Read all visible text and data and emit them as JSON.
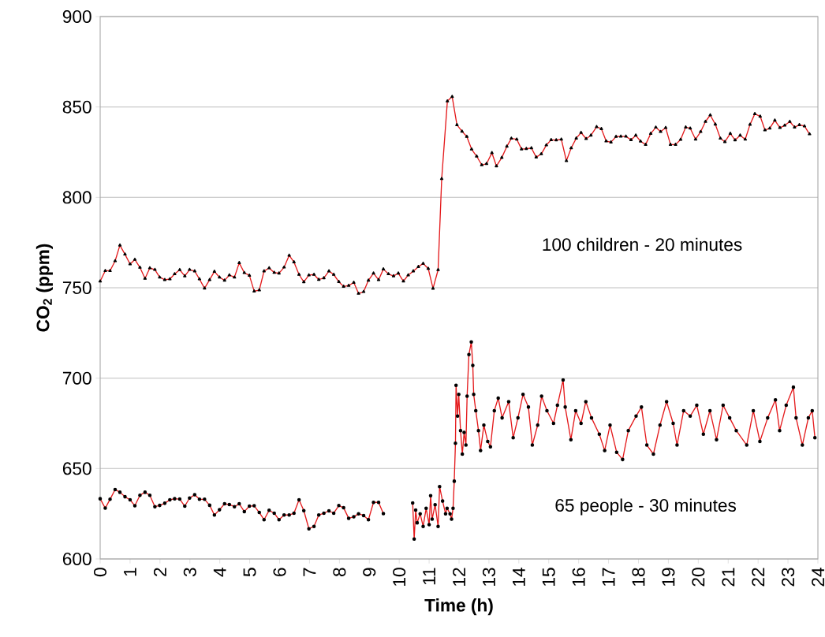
{
  "chart_data": {
    "type": "line",
    "xlabel": "Time (h)",
    "ylabel": "CO$_{2}$ (ppm)",
    "xlim": [
      0,
      24
    ],
    "ylim": [
      600,
      900
    ],
    "xticks": [
      0,
      1,
      2,
      3,
      4,
      5,
      6,
      7,
      8,
      9,
      10,
      11,
      12,
      13,
      14,
      15,
      16,
      17,
      18,
      19,
      20,
      21,
      22,
      23,
      24
    ],
    "yticks": [
      600,
      650,
      700,
      750,
      800,
      850,
      900
    ],
    "grid": "y",
    "line_style": "solid",
    "annotations": [
      "100 children - 20 minutes",
      "65 people - 30 minutes"
    ],
    "series": [
      {
        "color": "#e41a1c",
        "marker": "triangle",
        "x": [
          0,
          0.17,
          0.33,
          0.5,
          0.66,
          0.83,
          1.0,
          1.16,
          1.33,
          1.5,
          1.66,
          1.83,
          1.99,
          2.16,
          2.33,
          2.49,
          2.66,
          2.83,
          2.99,
          3.16,
          3.32,
          3.49,
          3.66,
          3.82,
          3.99,
          4.16,
          4.32,
          4.49,
          4.65,
          4.82,
          4.99,
          5.15,
          5.32,
          5.48,
          5.65,
          5.82,
          5.98,
          6.15,
          6.32,
          6.48,
          6.65,
          6.81,
          6.98,
          7.15,
          7.31,
          7.48,
          7.65,
          7.81,
          7.98,
          8.14,
          8.31,
          8.48,
          8.64,
          8.81,
          8.97,
          9.14,
          9.31,
          9.47,
          9.64,
          9.81,
          9.97,
          10.14,
          10.3,
          10.47,
          10.64,
          10.8,
          10.97,
          11.13,
          11.3,
          11.42,
          11.61,
          11.77,
          11.93,
          12.1,
          12.26,
          12.42,
          12.59,
          12.76,
          12.92,
          13.1,
          13.25,
          13.43,
          13.6,
          13.75,
          13.93,
          14.09,
          14.25,
          14.42,
          14.58,
          14.75,
          14.92,
          15.08,
          15.25,
          15.42,
          15.59,
          15.75,
          15.92,
          16.08,
          16.25,
          16.41,
          16.6,
          16.76,
          16.92,
          17.08,
          17.25,
          17.41,
          17.58,
          17.75,
          17.91,
          18.07,
          18.24,
          18.41,
          18.58,
          18.74,
          18.91,
          19.07,
          19.24,
          19.41,
          19.58,
          19.73,
          19.91,
          20.08,
          20.24,
          20.4,
          20.57,
          20.74,
          20.89,
          21.07,
          21.23,
          21.4,
          21.57,
          21.73,
          21.89,
          22.07,
          22.23,
          22.39,
          22.56,
          22.73,
          22.89,
          23.06,
          23.22,
          23.38,
          23.55,
          23.72
        ],
        "values": [
          753.6,
          759.4,
          759.4,
          764.8,
          773.5,
          768.5,
          763.1,
          765.6,
          761.2,
          755.1,
          760.9,
          760,
          755.8,
          754.4,
          754.8,
          757.6,
          759.9,
          756.5,
          760,
          759.2,
          754.8,
          749.7,
          754.4,
          759,
          755.8,
          754.1,
          757,
          755.8,
          763.8,
          758.3,
          756.8,
          748.1,
          748.7,
          759.2,
          760.9,
          758.4,
          758,
          761.3,
          767.9,
          764.2,
          757.3,
          753.2,
          757,
          757.3,
          754.5,
          755.4,
          759.2,
          757.3,
          753.3,
          750.7,
          751.2,
          752.9,
          746.8,
          747.8,
          754.1,
          758,
          754.4,
          760.3,
          757.6,
          756.5,
          758,
          753.6,
          757,
          759.2,
          761.6,
          763.4,
          760.6,
          749.6,
          759.9,
          810.3,
          853.2,
          855.7,
          840.1,
          836.5,
          833.6,
          826.6,
          822.7,
          817.9,
          818.6,
          824.6,
          817.3,
          822,
          828.2,
          832.6,
          832.1,
          826.7,
          826.9,
          827.3,
          822.2,
          824,
          828.9,
          831.8,
          831.7,
          832.1,
          820.2,
          827.3,
          832.7,
          835.8,
          832.4,
          834.3,
          839,
          837.9,
          831.1,
          830.5,
          833.6,
          833.7,
          833.7,
          831.8,
          834.3,
          831,
          829.2,
          835.3,
          838.7,
          836.3,
          838.5,
          829.2,
          829.2,
          832,
          838.8,
          838.2,
          832.1,
          836.3,
          841.9,
          845.5,
          840.4,
          832.6,
          830.7,
          835.3,
          831.7,
          834.3,
          832.1,
          840.3,
          846.2,
          844.8,
          837.2,
          838.2,
          842.6,
          838.5,
          839.8,
          841.9,
          838.8,
          840.1,
          839.4,
          835
        ]
      },
      {
        "color": "#e41a1c",
        "marker": "circle",
        "x": [
          0,
          0.17,
          0.33,
          0.5,
          0.66,
          0.83,
          1.0,
          1.16,
          1.33,
          1.5,
          1.66,
          1.83,
          1.99,
          2.16,
          2.33,
          2.49,
          2.66,
          2.83,
          2.99,
          3.16,
          3.32,
          3.49,
          3.66,
          3.82,
          3.99,
          4.16,
          4.32,
          4.49,
          4.65,
          4.82,
          4.99,
          5.15,
          5.32,
          5.48,
          5.65,
          5.82,
          5.98,
          6.15,
          6.32,
          6.48,
          6.65,
          6.81,
          6.98,
          7.15,
          7.31,
          7.48,
          7.65,
          7.81,
          7.98,
          8.14,
          8.31,
          8.48,
          8.64,
          8.81,
          8.97,
          9.14,
          9.31,
          9.47,
          10,
          10.45,
          10.5,
          10.55,
          10.6,
          10.7,
          10.8,
          10.9,
          11.0,
          11.05,
          11.1,
          11.2,
          11.3,
          11.35,
          11.45,
          11.55,
          11.6,
          11.7,
          11.75,
          11.8,
          11.84,
          11.88,
          11.9,
          11.95,
          11.99,
          12.05,
          12.11,
          12.17,
          12.23,
          12.27,
          12.33,
          12.41,
          12.46,
          12.49,
          12.56,
          12.65,
          12.72,
          12.83,
          12.96,
          13.05,
          13.18,
          13.31,
          13.44,
          13.66,
          13.81,
          13.97,
          14.14,
          14.32,
          14.45,
          14.63,
          14.76,
          14.94,
          15.16,
          15.29,
          15.48,
          15.55,
          15.74,
          15.9,
          16.08,
          16.24,
          16.43,
          16.69,
          16.87,
          17.05,
          17.27,
          17.47,
          17.66,
          17.92,
          18.1,
          18.28,
          18.5,
          18.72,
          18.94,
          19.16,
          19.29,
          19.51,
          19.73,
          19.95,
          20.17,
          20.39,
          20.61,
          20.83,
          21.05,
          21.27,
          21.62,
          21.84,
          22.06,
          22.32,
          22.58,
          22.72,
          22.94,
          23.18,
          23.27,
          23.48,
          23.68,
          23.81,
          23.9
        ],
        "values": [
          633.3,
          628.1,
          633,
          638.4,
          636.9,
          634.4,
          632.7,
          629.4,
          635.2,
          636.9,
          635.2,
          628.9,
          629.6,
          630.8,
          632.7,
          633.3,
          633.1,
          629.2,
          633.7,
          635.5,
          633,
          633,
          629.7,
          624.3,
          627.2,
          630.5,
          630.1,
          628.9,
          630.5,
          626.2,
          629.2,
          629.4,
          625.7,
          621.7,
          626.9,
          625.3,
          621.7,
          624.3,
          624.3,
          625.3,
          632.7,
          626.7,
          616.7,
          618,
          624.3,
          625.3,
          626.6,
          625.3,
          629.5,
          628.3,
          622.5,
          623.3,
          625,
          624,
          621.7,
          631.3,
          631.3,
          625.1,
          null,
          631,
          611,
          627,
          620,
          625,
          618,
          628,
          619,
          635,
          622,
          630,
          618,
          640,
          632,
          625,
          628,
          625,
          622,
          628,
          643,
          664,
          696,
          679,
          691,
          671,
          658,
          670,
          663,
          690,
          713,
          720,
          707,
          691,
          682,
          671,
          660,
          674,
          665,
          662,
          682,
          689,
          678,
          687,
          667,
          678,
          691,
          684,
          663,
          674,
          690,
          682,
          675,
          685,
          699,
          684,
          666,
          682,
          675,
          687,
          678,
          669,
          660,
          674,
          659,
          655,
          671,
          679,
          684,
          663,
          658,
          674,
          687,
          675,
          663,
          682,
          679,
          685,
          669,
          682,
          666,
          685,
          678,
          671,
          663,
          682,
          665,
          678,
          688,
          671,
          685,
          695,
          678,
          663,
          678,
          682,
          667
        ]
      }
    ]
  }
}
